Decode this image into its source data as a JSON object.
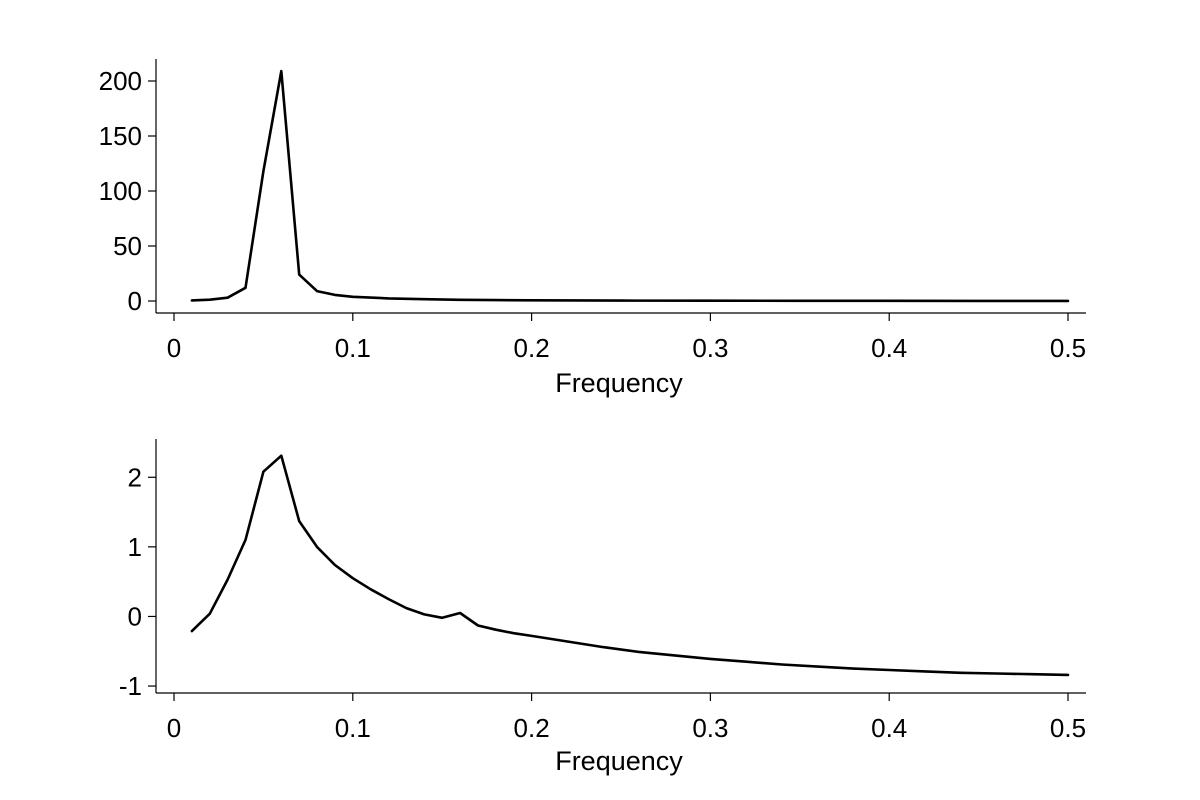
{
  "chart_data": [
    {
      "type": "line",
      "title": "",
      "xlabel": "Frequency",
      "ylabel": "",
      "xlim": [
        0,
        0.5
      ],
      "ylim": [
        -10,
        220
      ],
      "xticks": [
        0,
        0.1,
        0.2,
        0.3,
        0.4,
        0.5
      ],
      "xtick_labels": [
        "0",
        "0.1",
        "0.2",
        "0.3",
        "0.4",
        "0.5"
      ],
      "yticks": [
        0,
        50,
        100,
        150,
        200
      ],
      "ytick_labels": [
        "0",
        "50",
        "100",
        "150",
        "200"
      ],
      "grid": false,
      "line_color": "#000000",
      "series": [
        {
          "name": "",
          "x": [
            0.01,
            0.02,
            0.03,
            0.04,
            0.05,
            0.06,
            0.07,
            0.08,
            0.09,
            0.1,
            0.12,
            0.14,
            0.16,
            0.18,
            0.2,
            0.25,
            0.3,
            0.35,
            0.4,
            0.45,
            0.5
          ],
          "y": [
            0.5,
            1.2,
            3.0,
            12.0,
            118.0,
            209.0,
            24.0,
            9.0,
            5.5,
            3.8,
            2.4,
            1.6,
            1.1,
            0.8,
            0.6,
            0.4,
            0.3,
            0.2,
            0.15,
            0.12,
            0.1
          ]
        }
      ]
    },
    {
      "type": "line",
      "title": "",
      "xlabel": "Frequency",
      "ylabel": "",
      "xlim": [
        0,
        0.5
      ],
      "ylim": [
        -1.1,
        2.55
      ],
      "xticks": [
        0,
        0.1,
        0.2,
        0.3,
        0.4,
        0.5
      ],
      "xtick_labels": [
        "0",
        "0.1",
        "0.2",
        "0.3",
        "0.4",
        "0.5"
      ],
      "yticks": [
        -1,
        0,
        1,
        2
      ],
      "ytick_labels": [
        "-1",
        "0",
        "1",
        "2"
      ],
      "grid": false,
      "line_color": "#000000",
      "series": [
        {
          "name": "",
          "x": [
            0.01,
            0.02,
            0.03,
            0.04,
            0.05,
            0.06,
            0.07,
            0.08,
            0.09,
            0.1,
            0.11,
            0.12,
            0.13,
            0.14,
            0.15,
            0.16,
            0.17,
            0.18,
            0.19,
            0.2,
            0.22,
            0.24,
            0.26,
            0.28,
            0.3,
            0.32,
            0.34,
            0.36,
            0.38,
            0.4,
            0.42,
            0.44,
            0.46,
            0.48,
            0.5
          ],
          "y": [
            -0.21,
            0.04,
            0.53,
            1.1,
            2.08,
            2.31,
            1.37,
            1.0,
            0.74,
            0.55,
            0.39,
            0.25,
            0.12,
            0.03,
            -0.02,
            0.05,
            -0.13,
            -0.19,
            -0.24,
            -0.28,
            -0.36,
            -0.44,
            -0.51,
            -0.56,
            -0.61,
            -0.65,
            -0.69,
            -0.72,
            -0.75,
            -0.77,
            -0.79,
            -0.81,
            -0.82,
            -0.83,
            -0.84
          ]
        }
      ]
    }
  ]
}
